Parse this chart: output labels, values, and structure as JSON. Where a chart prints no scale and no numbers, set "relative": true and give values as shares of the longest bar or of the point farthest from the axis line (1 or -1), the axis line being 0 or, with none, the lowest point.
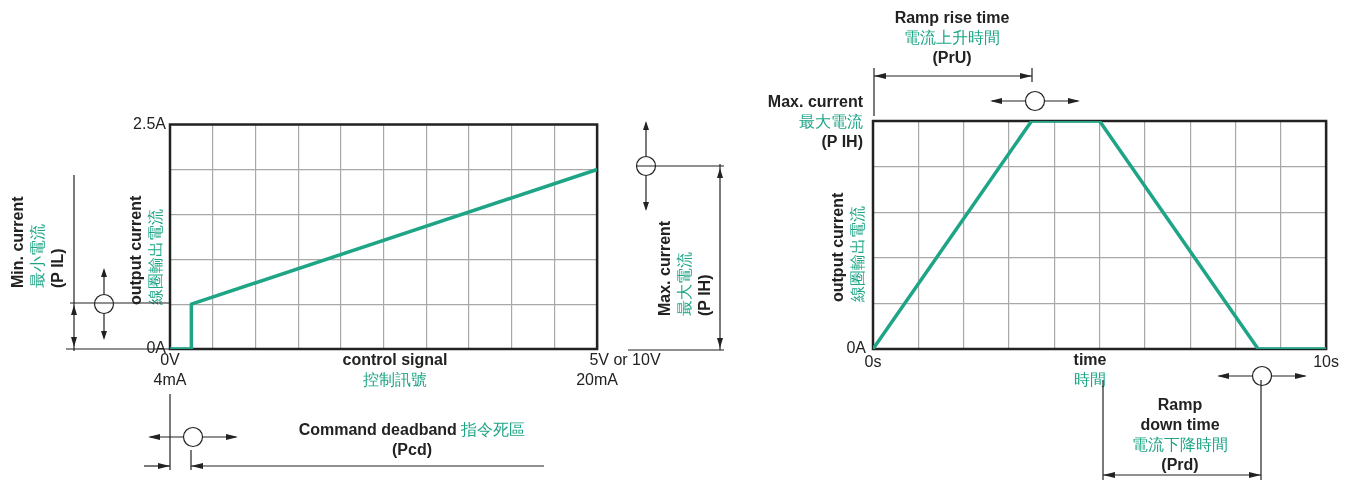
{
  "chart_data": [
    {
      "type": "line",
      "xlabel": "control signal\n控制訊號",
      "ylabel": "output current\n線圈輸出電流",
      "x": [
        4,
        4.8,
        4.8,
        20
      ],
      "series": [
        {
          "color": "#1ea586",
          "values": [
            0,
            0,
            0.5,
            2
          ]
        }
      ],
      "xlim": [
        4,
        20
      ],
      "xticks": [
        {
          "value": 4,
          "label": "4mA"
        },
        {
          "value": 5.6,
          "label": null
        },
        {
          "value": 7.2,
          "label": null
        },
        {
          "value": 8.8,
          "label": null
        },
        {
          "value": 10.4,
          "label": null
        },
        {
          "value": 12,
          "label": null
        },
        {
          "value": 13.6,
          "label": null
        },
        {
          "value": 15.2,
          "label": null
        },
        {
          "value": 16.8,
          "label": null
        },
        {
          "value": 18.4,
          "label": null
        },
        {
          "value": 20,
          "label": "20mA"
        }
      ],
      "ylim": [
        0,
        2.5
      ],
      "yticks": [
        {
          "value": 0,
          "label": "0A"
        },
        {
          "value": 0.5,
          "label": null
        },
        {
          "value": 1,
          "label": null
        },
        {
          "value": 1.5,
          "label": null
        },
        {
          "value": 2,
          "label": null
        },
        {
          "value": 2.5,
          "label": "2.5A"
        }
      ],
      "grid": true,
      "legend": false,
      "marker": "none",
      "line_style": "solid",
      "annotations": [
        "Min. current\n最小電流\n(P IL)",
        "Max. current\n最大電流\n(P IH)",
        "Command deadband\n指令死區\n(Pcd)",
        "0V",
        "5V or 10V"
      ]
    },
    {
      "type": "line",
      "xlabel": "time\n時間",
      "ylabel": "output current\n線圈輸出電流",
      "relative": true,
      "x": [
        0,
        3.5,
        5,
        8.5,
        10
      ],
      "series": [
        {
          "color": "#1ea586",
          "values": [
            0,
            1,
            1,
            0,
            0
          ]
        }
      ],
      "xlim": [
        0,
        10
      ],
      "xticks": [
        {
          "value": 0,
          "label": "0s"
        },
        {
          "value": 1,
          "label": null
        },
        {
          "value": 2,
          "label": null
        },
        {
          "value": 3,
          "label": null
        },
        {
          "value": 4,
          "label": null
        },
        {
          "value": 5,
          "label": null
        },
        {
          "value": 6,
          "label": null
        },
        {
          "value": 7,
          "label": null
        },
        {
          "value": 8,
          "label": null
        },
        {
          "value": 9,
          "label": null
        },
        {
          "value": 10,
          "label": "10s"
        }
      ],
      "grid": true,
      "legend": false,
      "marker": "none",
      "line_style": "solid",
      "annotations": [
        "Ramp rise time\n電流上升時間\n(PrU)",
        "Max. current\n最大電流\n(P IH)",
        "Ramp\ndown time\n電流下降時間\n(Prd)",
        "0A"
      ]
    }
  ]
}
